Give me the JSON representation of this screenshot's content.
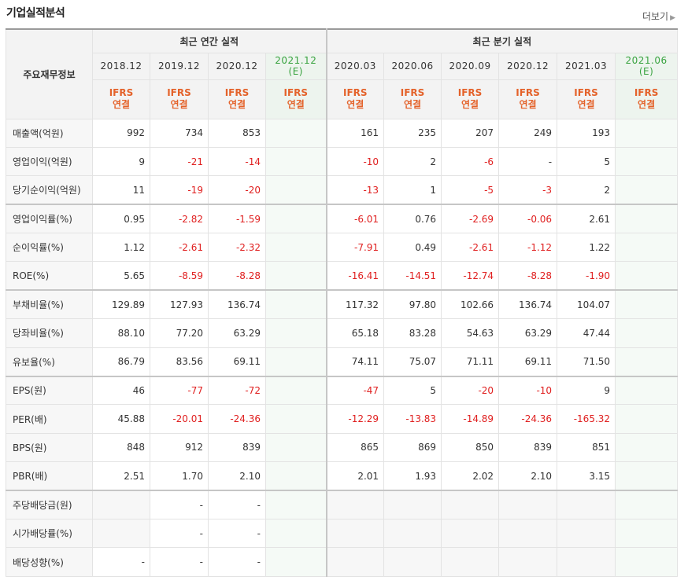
{
  "title": "기업실적분석",
  "more_label": "더보기",
  "corner_label": "주요재무정보",
  "annual_group": "최근 연간 실적",
  "quarter_group": "최근 분기 실적",
  "columns": [
    {
      "period": "2018.12",
      "est": "",
      "ifrs1": "IFRS",
      "ifrs2": "연결"
    },
    {
      "period": "2019.12",
      "est": "",
      "ifrs1": "IFRS",
      "ifrs2": "연결"
    },
    {
      "period": "2020.12",
      "est": "",
      "ifrs1": "IFRS",
      "ifrs2": "연결"
    },
    {
      "period": "2021.12",
      "est": "(E)",
      "ifrs1": "IFRS",
      "ifrs2": "연결"
    },
    {
      "period": "2020.03",
      "est": "",
      "ifrs1": "IFRS",
      "ifrs2": "연결"
    },
    {
      "period": "2020.06",
      "est": "",
      "ifrs1": "IFRS",
      "ifrs2": "연결"
    },
    {
      "period": "2020.09",
      "est": "",
      "ifrs1": "IFRS",
      "ifrs2": "연결"
    },
    {
      "period": "2020.12",
      "est": "",
      "ifrs1": "IFRS",
      "ifrs2": "연결"
    },
    {
      "period": "2021.03",
      "est": "",
      "ifrs1": "IFRS",
      "ifrs2": "연결"
    },
    {
      "period": "2021.06",
      "est": "(E)",
      "ifrs1": "IFRS",
      "ifrs2": "연결"
    }
  ],
  "rows": [
    {
      "label": "매출액(억원)",
      "values": [
        "992",
        "734",
        "853",
        "",
        "161",
        "235",
        "207",
        "249",
        "193",
        ""
      ]
    },
    {
      "label": "영업이익(억원)",
      "values": [
        "9",
        "-21",
        "-14",
        "",
        "-10",
        "2",
        "-6",
        "-",
        "5",
        ""
      ]
    },
    {
      "label": "당기순이익(억원)",
      "values": [
        "11",
        "-19",
        "-20",
        "",
        "-13",
        "1",
        "-5",
        "-3",
        "2",
        ""
      ]
    },
    {
      "label": "영업이익률(%)",
      "values": [
        "0.95",
        "-2.82",
        "-1.59",
        "",
        "-6.01",
        "0.76",
        "-2.69",
        "-0.06",
        "2.61",
        ""
      ]
    },
    {
      "label": "순이익률(%)",
      "values": [
        "1.12",
        "-2.61",
        "-2.32",
        "",
        "-7.91",
        "0.49",
        "-2.61",
        "-1.12",
        "1.22",
        ""
      ]
    },
    {
      "label": "ROE(%)",
      "values": [
        "5.65",
        "-8.59",
        "-8.28",
        "",
        "-16.41",
        "-14.51",
        "-12.74",
        "-8.28",
        "-1.90",
        ""
      ]
    },
    {
      "label": "부채비율(%)",
      "values": [
        "129.89",
        "127.93",
        "136.74",
        "",
        "117.32",
        "97.80",
        "102.66",
        "136.74",
        "104.07",
        ""
      ]
    },
    {
      "label": "당좌비율(%)",
      "values": [
        "88.10",
        "77.20",
        "63.29",
        "",
        "65.18",
        "83.28",
        "54.63",
        "63.29",
        "47.44",
        ""
      ]
    },
    {
      "label": "유보율(%)",
      "values": [
        "86.79",
        "83.56",
        "69.11",
        "",
        "74.11",
        "75.07",
        "71.11",
        "69.11",
        "71.50",
        ""
      ]
    },
    {
      "label": "EPS(원)",
      "values": [
        "46",
        "-77",
        "-72",
        "",
        "-47",
        "5",
        "-20",
        "-10",
        "9",
        ""
      ]
    },
    {
      "label": "PER(배)",
      "values": [
        "45.88",
        "-20.01",
        "-24.36",
        "",
        "-12.29",
        "-13.83",
        "-14.89",
        "-24.36",
        "-165.32",
        ""
      ]
    },
    {
      "label": "BPS(원)",
      "values": [
        "848",
        "912",
        "839",
        "",
        "865",
        "869",
        "850",
        "839",
        "851",
        ""
      ]
    },
    {
      "label": "PBR(배)",
      "values": [
        "2.51",
        "1.70",
        "2.10",
        "",
        "2.01",
        "1.93",
        "2.02",
        "2.10",
        "3.15",
        ""
      ]
    },
    {
      "label": "주당배당금(원)",
      "values": [
        "",
        "-",
        "-",
        "",
        "",
        "",
        "",
        "",
        "",
        ""
      ]
    },
    {
      "label": "시가배당률(%)",
      "values": [
        "",
        "-",
        "-",
        "",
        "",
        "",
        "",
        "",
        "",
        ""
      ]
    },
    {
      "label": "배당성향(%)",
      "values": [
        "-",
        "-",
        "-",
        "",
        "",
        "",
        "",
        "",
        "",
        ""
      ]
    }
  ],
  "group_starts": [
    3,
    6,
    9,
    13
  ],
  "empty_cells": [
    [
      13,
      0
    ],
    [
      14,
      0
    ],
    [
      13,
      4
    ],
    [
      13,
      5
    ],
    [
      13,
      6
    ],
    [
      13,
      7
    ],
    [
      13,
      8
    ],
    [
      14,
      4
    ],
    [
      14,
      5
    ],
    [
      14,
      6
    ],
    [
      14,
      7
    ],
    [
      14,
      8
    ],
    [
      15,
      4
    ],
    [
      15,
      5
    ],
    [
      15,
      6
    ],
    [
      15,
      7
    ],
    [
      15,
      8
    ]
  ],
  "colors": {
    "negative": "#e02020",
    "ifrs": "#e4622a",
    "estimate": "#37a23e"
  }
}
